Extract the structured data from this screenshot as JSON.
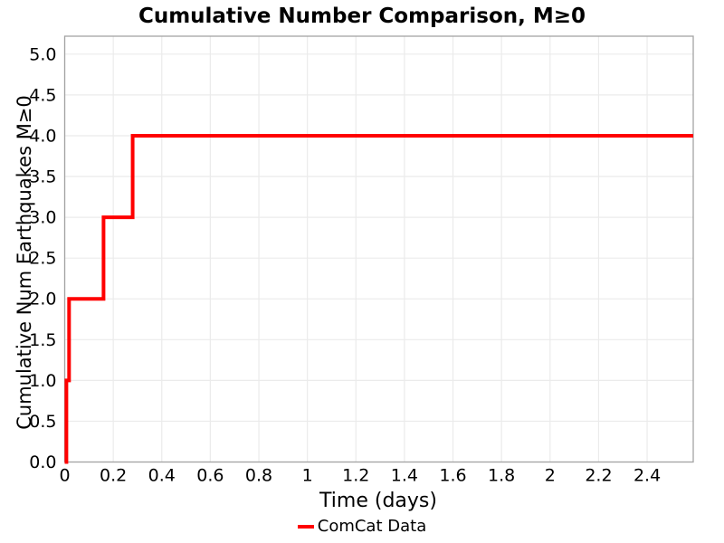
{
  "chart_data": {
    "type": "line",
    "step": "post",
    "title": "Cumulative Number Comparison, M≥0",
    "xlabel": "Time (days)",
    "ylabel": "Cumulative Num Earthquakes M≥0",
    "xlim": [
      0,
      2.59
    ],
    "ylim": [
      0,
      5.22
    ],
    "xticks": [
      0,
      0.2,
      0.4,
      0.6,
      0.8,
      1,
      1.2,
      1.4,
      1.6,
      1.8,
      2,
      2.2,
      2.4
    ],
    "xtick_labels": [
      "0",
      "0.2",
      "0.4",
      "0.6",
      "0.8",
      "1",
      "1.2",
      "1.4",
      "1.6",
      "1.8",
      "2",
      "2.2",
      "2.4"
    ],
    "yticks": [
      0,
      0.5,
      1,
      1.5,
      2,
      2.5,
      3,
      3.5,
      4,
      4.5,
      5
    ],
    "ytick_labels": [
      "0.0",
      "0.5",
      "1.0",
      "1.5",
      "2.0",
      "2.5",
      "3.0",
      "3.5",
      "4.0",
      "4.5",
      "5.0"
    ],
    "grid": true,
    "legend_position": "bottom-center",
    "series": [
      {
        "name": "ComCat Data",
        "color": "#ff0000",
        "line_width": 4,
        "x": [
          0,
          0.007,
          0.018,
          0.16,
          0.28,
          2.59
        ],
        "y": [
          0,
          1,
          2,
          3,
          4,
          4
        ]
      }
    ],
    "colors": {
      "background": "#ffffff",
      "grid": "#ebebeb",
      "frame": "#a3a3a3",
      "text": "#000000"
    }
  }
}
